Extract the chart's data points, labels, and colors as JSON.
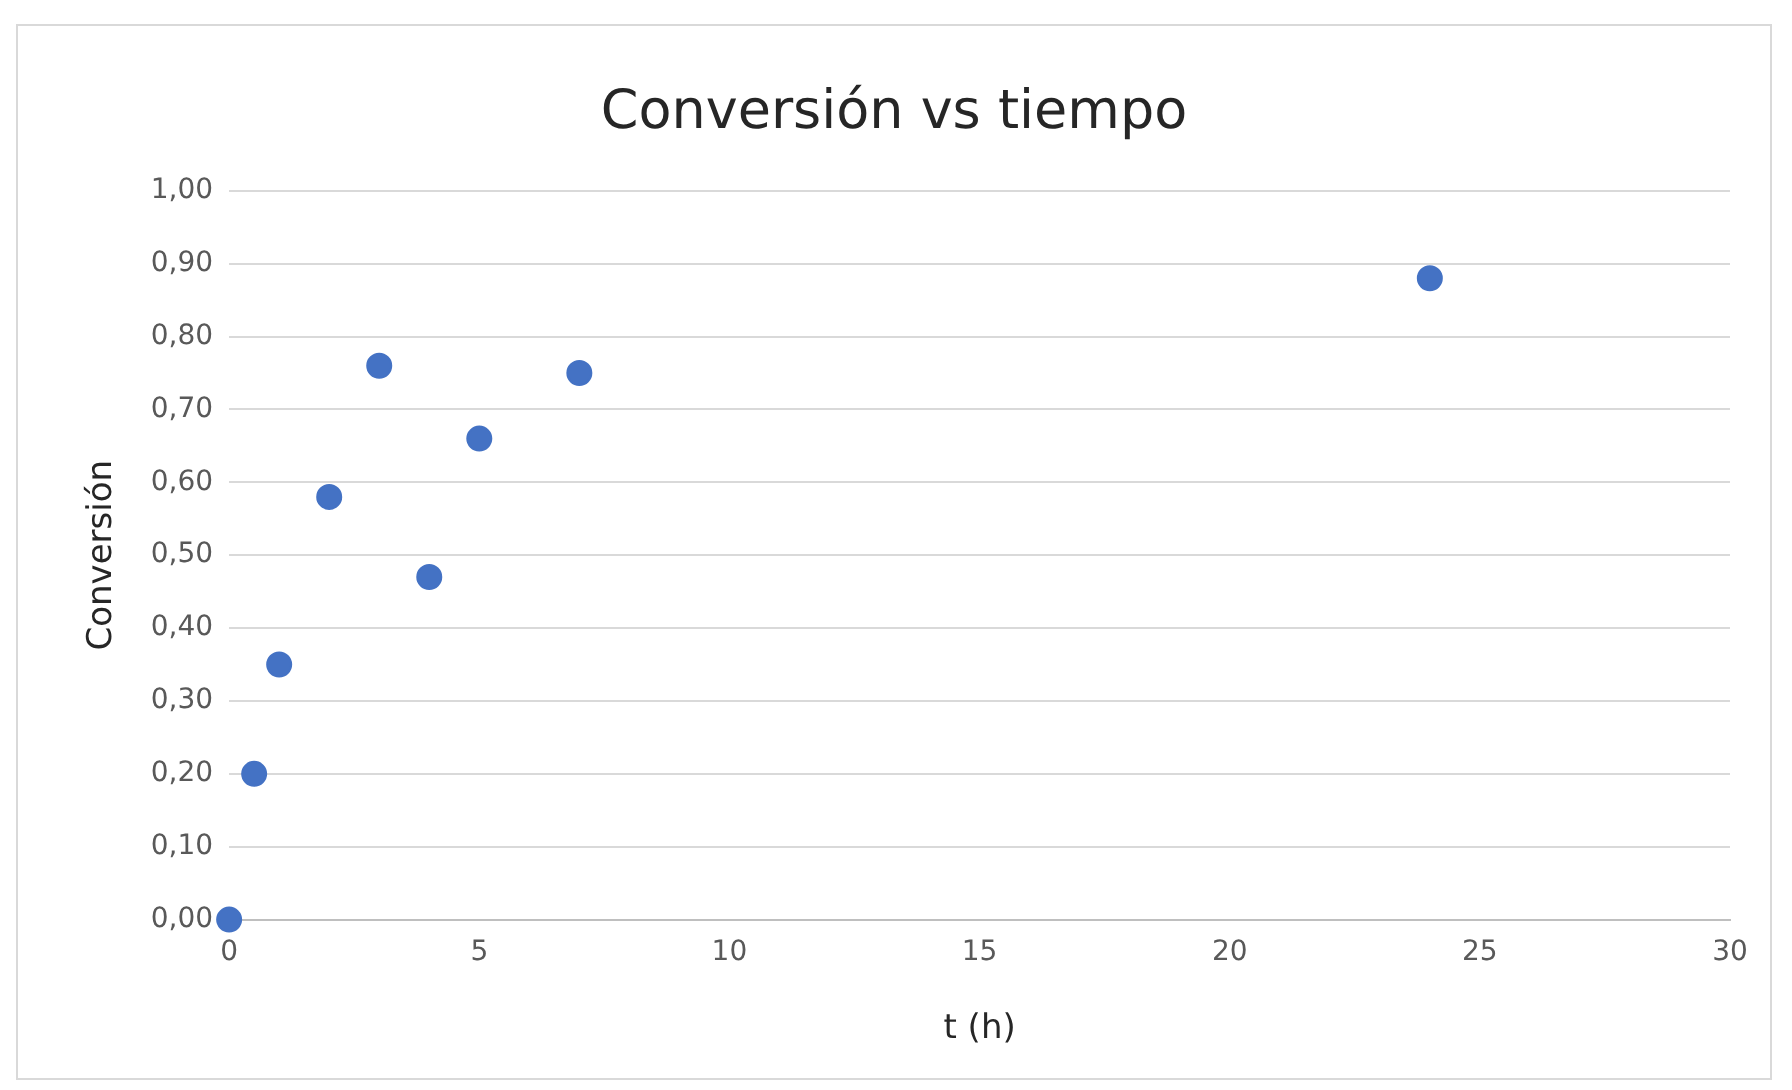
{
  "chart_data": {
    "type": "scatter",
    "title": "Conversión vs tiempo",
    "xlabel": "t (h)",
    "ylabel": "Conversión",
    "x": [
      0,
      0.5,
      1,
      2,
      3,
      4,
      5,
      7,
      24
    ],
    "series": [
      {
        "color": "#4472c4",
        "values": [
          0,
          0.2,
          0.35,
          0.58,
          0.76,
          0.47,
          0.66,
          0.75,
          0.88
        ]
      }
    ],
    "xlim": [
      0,
      30
    ],
    "xticks": [
      0,
      5,
      10,
      15,
      20,
      25,
      30
    ],
    "ylim": [
      0,
      1
    ],
    "yticks": [
      {
        "value": 0,
        "label": "0,00"
      },
      {
        "value": 0.1,
        "label": "0,10"
      },
      {
        "value": 0.2,
        "label": "0,20"
      },
      {
        "value": 0.3,
        "label": "0,30"
      },
      {
        "value": 0.4,
        "label": "0,40"
      },
      {
        "value": 0.5,
        "label": "0,50"
      },
      {
        "value": 0.6,
        "label": "0,60"
      },
      {
        "value": 0.7,
        "label": "0,70"
      },
      {
        "value": 0.8,
        "label": "0,80"
      },
      {
        "value": 0.9,
        "label": "0,90"
      },
      {
        "value": 1,
        "label": "1,00"
      }
    ],
    "grid": "y",
    "legend": false,
    "marker": "circle"
  }
}
